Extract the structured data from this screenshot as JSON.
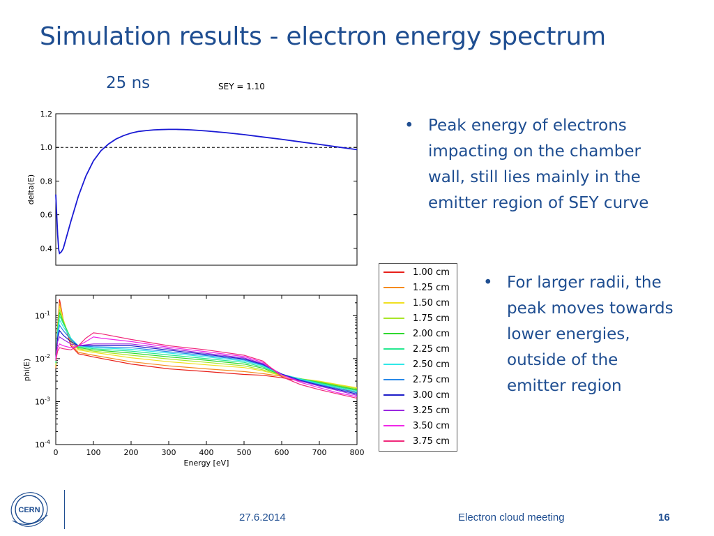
{
  "slide": {
    "title": "Simulation results - electron energy spectrum",
    "subtitle": "25 ns",
    "sey_label": "SEY = 1.10",
    "bullets": [
      "Peak energy of electrons impacting on the chamber wall, still lies mainly in the emitter region of SEY curve",
      "For larger radii, the peak moves towards lower energies, outside of the emitter region"
    ],
    "bullet_glyph": "•",
    "footer": {
      "date": "27.6.2014",
      "meeting": "Electron cloud meeting",
      "page": "16"
    },
    "logo_text": "CERN"
  },
  "chart_data": [
    {
      "type": "line",
      "title": "",
      "xlabel": "",
      "ylabel": "delta(E)",
      "xlim": [
        0,
        800
      ],
      "ylim": [
        0.3,
        1.2
      ],
      "yticks": [
        0.4,
        0.6,
        0.8,
        1.0,
        1.2
      ],
      "ytick_labels": [
        "0.4",
        "0.6",
        "0.8",
        "1.0",
        "1.2"
      ],
      "series": [
        {
          "color": "#1a1ad4",
          "x": [
            0,
            2,
            5,
            8,
            10,
            15,
            20,
            30,
            40,
            60,
            80,
            100,
            120,
            140,
            160,
            180,
            200,
            220,
            240,
            260,
            280,
            300,
            320,
            340,
            360,
            400,
            450,
            500,
            550,
            600,
            650,
            700,
            750,
            800
          ],
          "y": [
            0.72,
            0.62,
            0.48,
            0.39,
            0.37,
            0.38,
            0.4,
            0.48,
            0.56,
            0.71,
            0.83,
            0.92,
            0.98,
            1.02,
            1.05,
            1.07,
            1.085,
            1.095,
            1.1,
            1.104,
            1.106,
            1.107,
            1.107,
            1.106,
            1.104,
            1.098,
            1.088,
            1.076,
            1.062,
            1.048,
            1.033,
            1.018,
            1.002,
            0.987
          ]
        }
      ],
      "reference_line": {
        "y": 1.0,
        "style": "dashed"
      }
    },
    {
      "type": "line",
      "title": "",
      "xlabel": "Energy [eV]",
      "ylabel": "phi(E)",
      "yscale": "log",
      "xlim": [
        0,
        800
      ],
      "ylim": [
        0.0001,
        0.3
      ],
      "xticks": [
        0,
        100,
        200,
        300,
        400,
        500,
        600,
        700,
        800
      ],
      "xtick_labels": [
        "0",
        "100",
        "200",
        "300",
        "400",
        "500",
        "600",
        "700",
        "800"
      ],
      "yticks": [
        0.0001,
        0.001,
        0.01,
        0.1
      ],
      "ytick_base": "10",
      "ytick_exponents": [
        "-4",
        "-3",
        "-2",
        "-1"
      ],
      "legend_position": "right",
      "series": [
        {
          "name": "1.00 cm",
          "color": "#e8201a",
          "x": [
            0,
            5,
            10,
            20,
            40,
            60,
            100,
            200,
            300,
            400,
            500,
            550,
            600,
            650,
            700,
            750,
            800
          ],
          "y": [
            0.006,
            0.06,
            0.24,
            0.08,
            0.02,
            0.013,
            0.011,
            0.0075,
            0.0058,
            0.005,
            0.0043,
            0.0041,
            0.0036,
            0.003,
            0.0025,
            0.002,
            0.0017
          ]
        },
        {
          "name": "1.25 cm",
          "color": "#f58a1e",
          "x": [
            0,
            5,
            10,
            20,
            40,
            60,
            100,
            200,
            300,
            400,
            500,
            550,
            600,
            650,
            700,
            750,
            800
          ],
          "y": [
            0.006,
            0.06,
            0.2,
            0.08,
            0.022,
            0.014,
            0.012,
            0.0085,
            0.0068,
            0.0058,
            0.005,
            0.0045,
            0.0039,
            0.0032,
            0.0027,
            0.0022,
            0.0019
          ]
        },
        {
          "name": "1.50 cm",
          "color": "#f0e020",
          "x": [
            0,
            5,
            10,
            20,
            40,
            60,
            100,
            200,
            300,
            400,
            500,
            550,
            600,
            650,
            700,
            750,
            800
          ],
          "y": [
            0.007,
            0.06,
            0.17,
            0.08,
            0.025,
            0.016,
            0.014,
            0.0105,
            0.0085,
            0.0072,
            0.0062,
            0.0052,
            0.004,
            0.0034,
            0.003,
            0.0025,
            0.0021
          ]
        },
        {
          "name": "1.75 cm",
          "color": "#a8e628",
          "x": [
            0,
            5,
            10,
            20,
            40,
            60,
            100,
            200,
            300,
            400,
            500,
            550,
            600,
            650,
            700,
            750,
            800
          ],
          "y": [
            0.007,
            0.055,
            0.14,
            0.075,
            0.027,
            0.017,
            0.015,
            0.012,
            0.0098,
            0.0082,
            0.0068,
            0.0055,
            0.0041,
            0.0034,
            0.0029,
            0.0024,
            0.002
          ]
        },
        {
          "name": "2.00 cm",
          "color": "#30d830",
          "x": [
            0,
            5,
            10,
            20,
            40,
            60,
            100,
            200,
            300,
            400,
            500,
            550,
            600,
            650,
            700,
            750,
            800
          ],
          "y": [
            0.008,
            0.05,
            0.12,
            0.07,
            0.03,
            0.018,
            0.016,
            0.0135,
            0.011,
            0.0092,
            0.0075,
            0.006,
            0.0042,
            0.0034,
            0.0028,
            0.0023,
            0.0019
          ]
        },
        {
          "name": "2.25 cm",
          "color": "#26e890",
          "x": [
            0,
            5,
            10,
            20,
            40,
            60,
            100,
            200,
            300,
            400,
            500,
            550,
            600,
            650,
            700,
            750,
            800
          ],
          "y": [
            0.008,
            0.045,
            0.1,
            0.065,
            0.03,
            0.019,
            0.017,
            0.015,
            0.0122,
            0.01,
            0.0082,
            0.0064,
            0.0043,
            0.0034,
            0.0027,
            0.0022,
            0.0018
          ]
        },
        {
          "name": "2.50 cm",
          "color": "#30e8e8",
          "x": [
            0,
            5,
            10,
            20,
            40,
            60,
            100,
            200,
            300,
            400,
            500,
            550,
            600,
            650,
            700,
            750,
            800
          ],
          "y": [
            0.009,
            0.04,
            0.08,
            0.055,
            0.03,
            0.02,
            0.018,
            0.0165,
            0.0135,
            0.011,
            0.0088,
            0.0068,
            0.0044,
            0.0033,
            0.0026,
            0.0021,
            0.0017
          ]
        },
        {
          "name": "2.75 cm",
          "color": "#2888e8",
          "x": [
            0,
            5,
            10,
            20,
            40,
            60,
            100,
            200,
            300,
            400,
            500,
            550,
            600,
            650,
            700,
            750,
            800
          ],
          "y": [
            0.009,
            0.035,
            0.06,
            0.045,
            0.028,
            0.02,
            0.019,
            0.018,
            0.0145,
            0.0118,
            0.0093,
            0.0071,
            0.0044,
            0.0032,
            0.0025,
            0.002,
            0.0016
          ]
        },
        {
          "name": "3.00 cm",
          "color": "#1c1cc8",
          "x": [
            0,
            5,
            10,
            20,
            40,
            60,
            100,
            200,
            300,
            400,
            500,
            550,
            600,
            650,
            700,
            750,
            800
          ],
          "y": [
            0.01,
            0.03,
            0.045,
            0.035,
            0.025,
            0.02,
            0.02,
            0.02,
            0.0158,
            0.0125,
            0.0098,
            0.0074,
            0.0044,
            0.0031,
            0.0024,
            0.0019,
            0.0015
          ]
        },
        {
          "name": "3.25 cm",
          "color": "#9a28e0",
          "x": [
            0,
            5,
            10,
            20,
            40,
            60,
            100,
            200,
            300,
            400,
            500,
            550,
            600,
            650,
            700,
            750,
            800
          ],
          "y": [
            0.01,
            0.025,
            0.032,
            0.028,
            0.022,
            0.02,
            0.022,
            0.022,
            0.017,
            0.0133,
            0.0104,
            0.0077,
            0.0042,
            0.003,
            0.0023,
            0.0018,
            0.0014
          ]
        },
        {
          "name": "3.50 cm",
          "color": "#f028e8",
          "x": [
            0,
            5,
            10,
            20,
            40,
            60,
            80,
            100,
            120,
            200,
            300,
            400,
            500,
            550,
            600,
            650,
            700,
            750,
            800
          ],
          "y": [
            0.01,
            0.018,
            0.022,
            0.02,
            0.018,
            0.02,
            0.025,
            0.032,
            0.03,
            0.025,
            0.0185,
            0.0145,
            0.0112,
            0.0082,
            0.0042,
            0.0028,
            0.0021,
            0.0016,
            0.0013
          ]
        },
        {
          "name": "3.75 cm",
          "color": "#f0287a",
          "x": [
            0,
            5,
            10,
            20,
            40,
            60,
            80,
            100,
            120,
            200,
            300,
            400,
            500,
            550,
            600,
            650,
            700,
            750,
            800
          ],
          "y": [
            0.009,
            0.015,
            0.018,
            0.017,
            0.016,
            0.02,
            0.03,
            0.04,
            0.038,
            0.028,
            0.02,
            0.016,
            0.012,
            0.0088,
            0.0038,
            0.0025,
            0.0019,
            0.0015,
            0.0012
          ]
        }
      ]
    }
  ]
}
